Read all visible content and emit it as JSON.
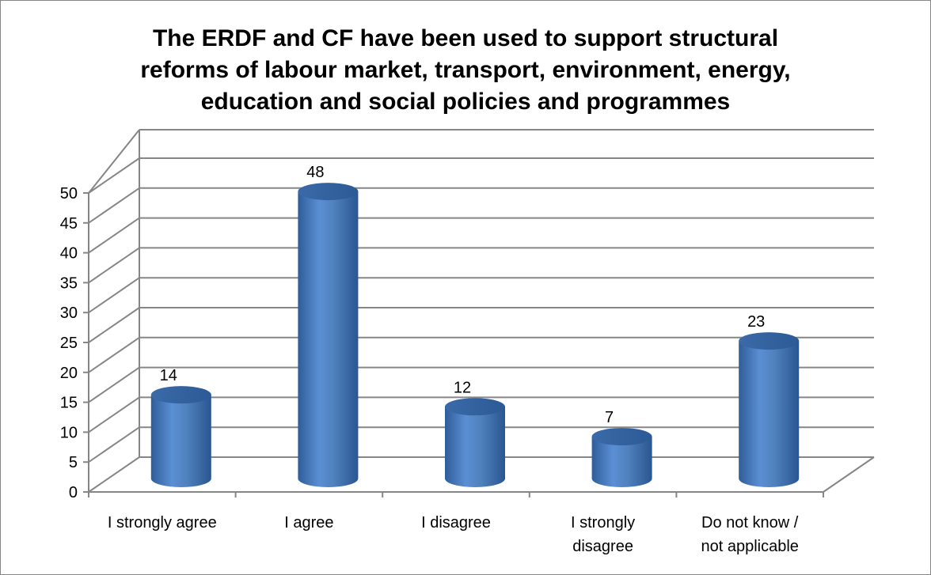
{
  "chart_data": {
    "type": "bar",
    "style": "3d-cylinder",
    "title_lines": [
      "The ERDF and CF have been used to support structural",
      "reforms of labour market, transport, environment, energy,",
      "education and social policies and programmes"
    ],
    "categories": [
      [
        "I strongly agree"
      ],
      [
        "I agree"
      ],
      [
        "I disagree"
      ],
      [
        "I strongly",
        "disagree"
      ],
      [
        "Do not know /",
        "not applicable"
      ]
    ],
    "values": [
      14,
      48,
      12,
      7,
      23
    ],
    "ylim": [
      0,
      50
    ],
    "yticks": [
      0,
      5,
      10,
      15,
      20,
      25,
      30,
      35,
      40,
      45,
      50
    ],
    "grid": true,
    "legend": "none",
    "bar_color": "#4f81bd"
  }
}
